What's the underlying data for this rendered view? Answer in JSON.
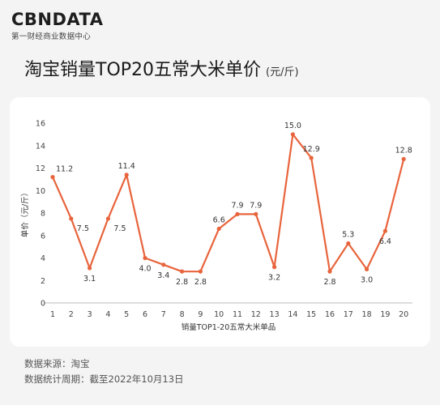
{
  "brand": {
    "logo_text": "CBNDATA",
    "tagline": "第一财经商业数据中心"
  },
  "title": {
    "main": "淘宝销量TOP20五常大米单价",
    "unit": "(元/斤)"
  },
  "footer": {
    "source": "数据来源：淘宝",
    "period": "数据统计周期：截至2022年10月13日"
  },
  "colors": {
    "line": "#e8643c",
    "axis": "#bbbbbb",
    "tick_text": "#444444"
  },
  "chart_data": {
    "type": "line",
    "title": "淘宝销量TOP20五常大米单价",
    "xlabel": "销量TOP1-20五常大米单品",
    "ylabel": "单价（元/斤）",
    "x": [
      1,
      2,
      3,
      4,
      5,
      6,
      7,
      8,
      9,
      10,
      11,
      12,
      13,
      14,
      15,
      16,
      17,
      18,
      19,
      20
    ],
    "series": [
      {
        "values": [
          11.2,
          7.5,
          3.1,
          7.5,
          11.4,
          4.0,
          3.4,
          2.8,
          2.8,
          6.6,
          7.9,
          7.9,
          3.2,
          15.0,
          12.9,
          2.8,
          5.3,
          3.0,
          6.4,
          12.8
        ],
        "labels": [
          "11.2",
          "7.5",
          "3.1",
          "7.5",
          "11.4",
          "4.0",
          "3.4",
          "2.8",
          "2.8",
          "6.6",
          "7.9",
          "7.9",
          "3.2",
          "15.0",
          "12.9",
          "2.8",
          "5.3",
          "3.0",
          "6.4",
          "12.8"
        ]
      }
    ],
    "ylim": [
      0,
      16
    ],
    "yticks": [
      0,
      2,
      4,
      6,
      8,
      10,
      12,
      14,
      16
    ],
    "grid": false,
    "legend": "none"
  }
}
